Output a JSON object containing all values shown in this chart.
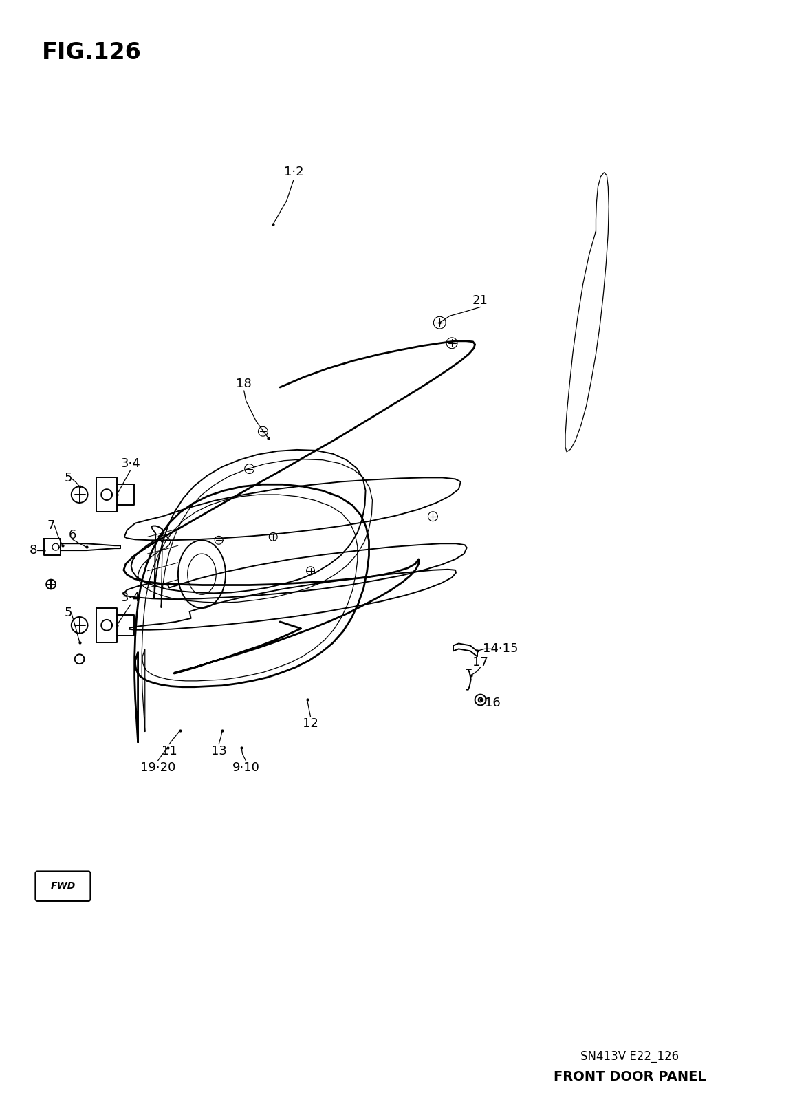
{
  "title": "FIG.126",
  "subtitle1": "SN413V E22_126",
  "subtitle2": "FRONT DOOR PANEL",
  "background_color": "#ffffff",
  "line_color": "#000000",
  "fig_width": 11.56,
  "fig_height": 16.21
}
